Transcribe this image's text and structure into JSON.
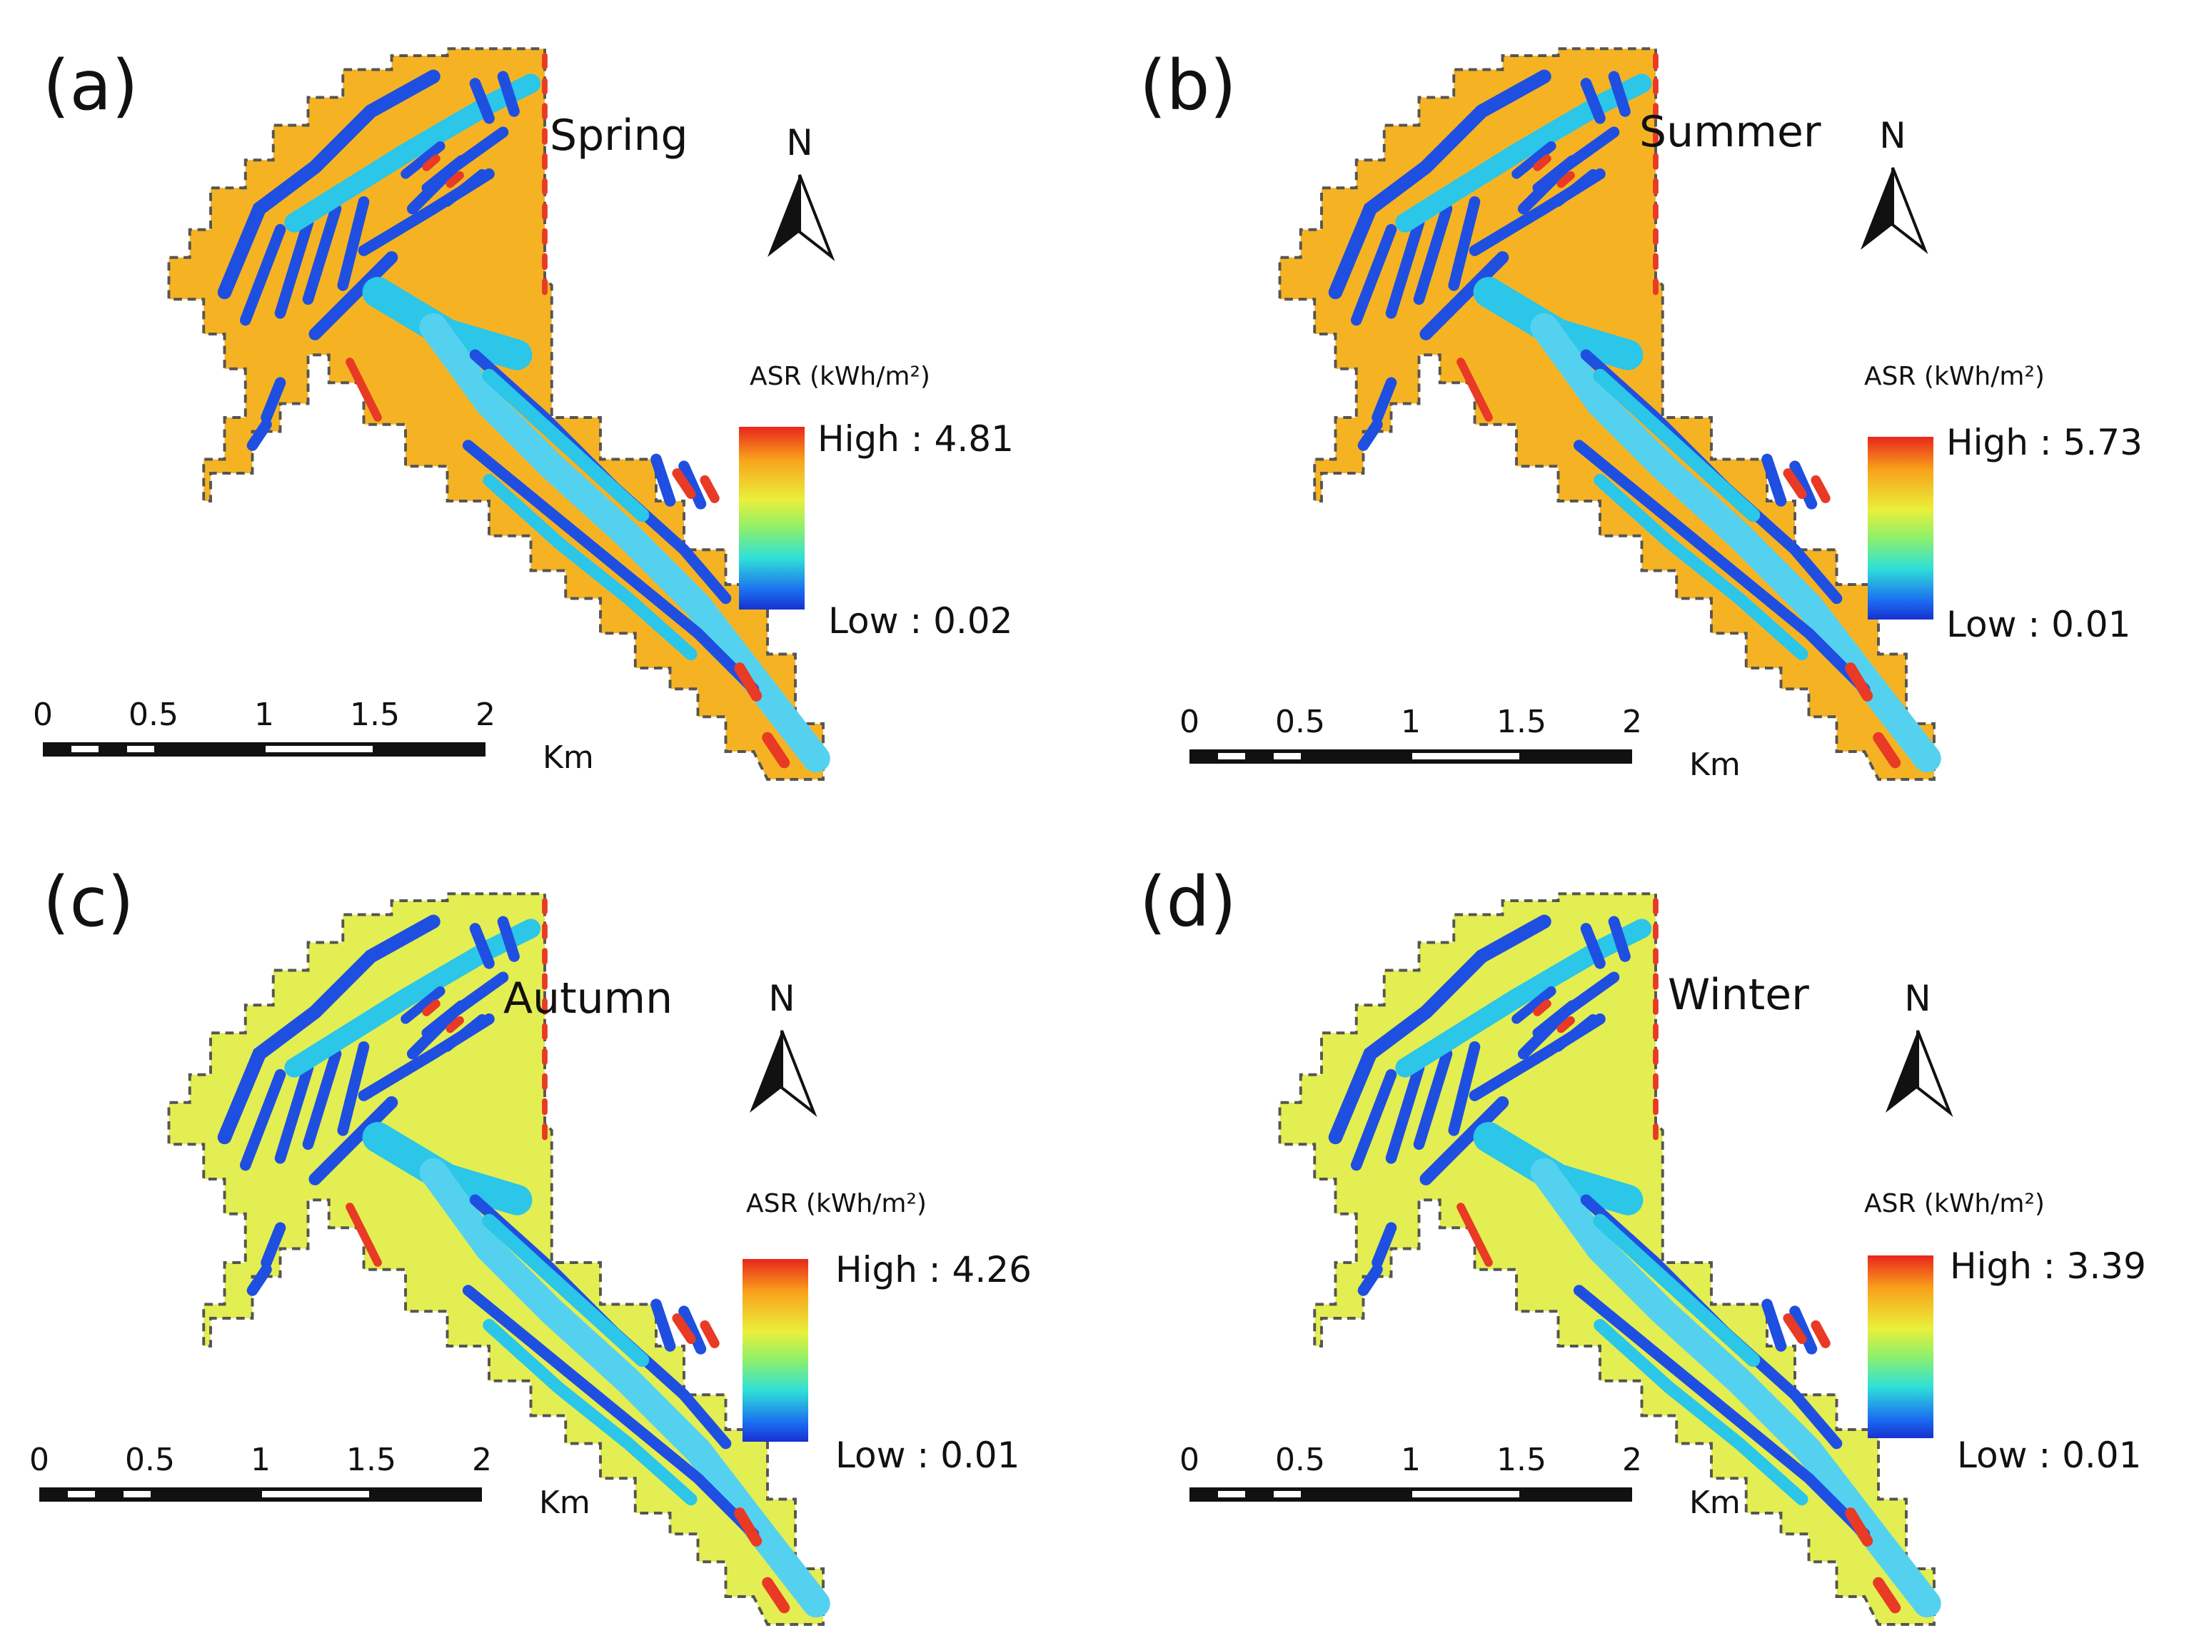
{
  "legend": {
    "title": "ASR (kWh/m²)",
    "high_prefix": "High : ",
    "low_prefix": "Low : ",
    "ramp_colors": [
      "#e8261c",
      "#f9a21b",
      "#e9f03a",
      "#8ff06a",
      "#2fe0d8",
      "#1b6bf0",
      "#1730d0"
    ]
  },
  "north_arrow": {
    "letter": "N"
  },
  "scale_bar": {
    "ticks": [
      "0",
      "0.5",
      "1",
      "1.5",
      "2"
    ],
    "unit": "Km"
  },
  "panels": [
    {
      "label": "(a)",
      "season": "Spring",
      "high": "4.81",
      "low": "0.02",
      "base_color": "#f5b324"
    },
    {
      "label": "(b)",
      "season": "Summer",
      "high": "5.73",
      "low": "0.01",
      "base_color": "#f5b324"
    },
    {
      "label": "(c)",
      "season": "Autumn",
      "high": "4.26",
      "low": "0.01",
      "base_color": "#e3ee52"
    },
    {
      "label": "(d)",
      "season": "Winter",
      "high": "3.39",
      "low": "0.01",
      "base_color": "#e3ee52"
    }
  ]
}
